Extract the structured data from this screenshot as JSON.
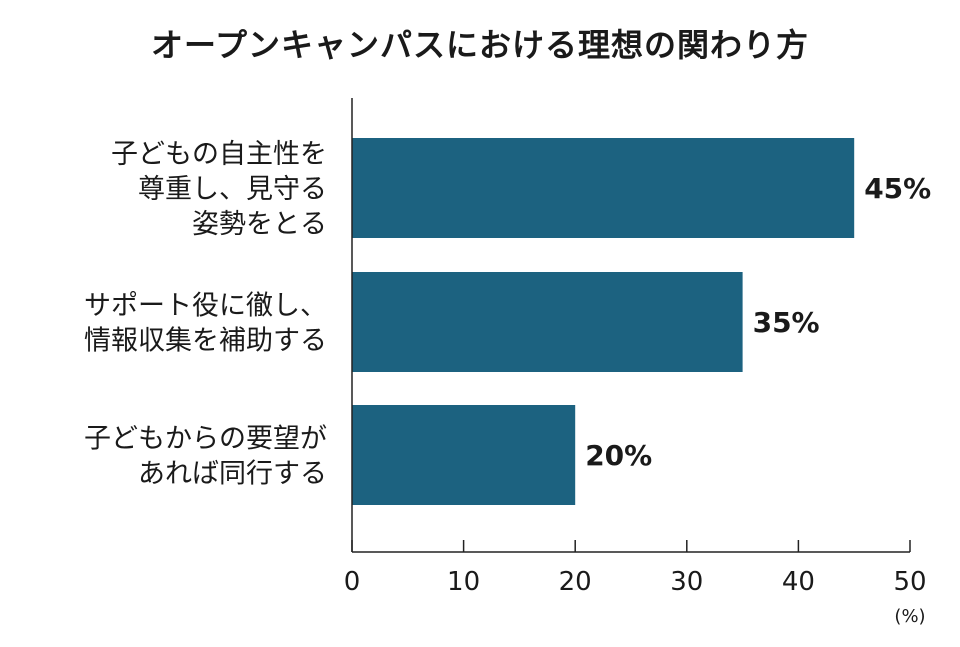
{
  "chart_data": {
    "type": "bar",
    "orientation": "horizontal",
    "title": "オープンキャンパスにおける理想の関わり方",
    "categories": [
      [
        "子どもの自主性を",
        "尊重し、見守る",
        "姿勢をとる"
      ],
      [
        "サポート役に徹し、",
        "情報収集を補助する"
      ],
      [
        "子どもからの要望が",
        "あれば同行する"
      ]
    ],
    "values": [
      45,
      35,
      20
    ],
    "value_labels": [
      "45%",
      "35%",
      "20%"
    ],
    "xlim": [
      0,
      50
    ],
    "xticks": [
      0,
      10,
      20,
      30,
      40,
      50
    ],
    "x_unit": "(%)",
    "grid": false,
    "bar_color": "#1c6280",
    "axis_color": "#222222"
  }
}
